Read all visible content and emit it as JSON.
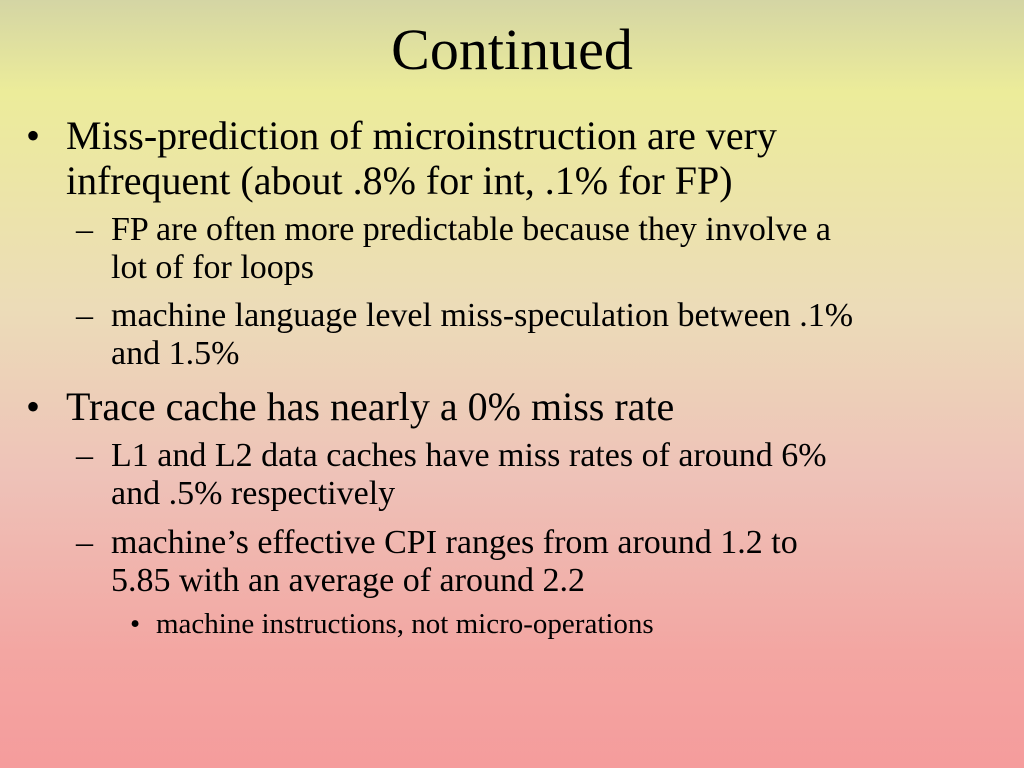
{
  "slide": {
    "title": "Continued",
    "bullet_glyph": "•",
    "dash_glyph": "–",
    "items": [
      {
        "line1": "Miss-prediction of microinstruction are very",
        "line2": "infrequent (about .8% for int, .1% for FP)",
        "subitems": [
          {
            "line1": "FP are often more predictable because they involve a",
            "line2": "lot of for loops"
          },
          {
            "line1": "machine language level miss-speculation between .1%",
            "line2": "and 1.5%"
          }
        ]
      },
      {
        "line1": "Trace cache has nearly a 0% miss rate",
        "subitems": [
          {
            "line1": "L1 and L2 data caches have miss rates of around 6%",
            "line2": "and .5% respectively"
          },
          {
            "line1": "machine’s effective CPI ranges from around 1.2 to",
            "line2": "5.85 with an average of around 2.2",
            "subsubitems": [
              {
                "text": "machine instructions, not micro-operations"
              }
            ]
          }
        ]
      }
    ]
  }
}
